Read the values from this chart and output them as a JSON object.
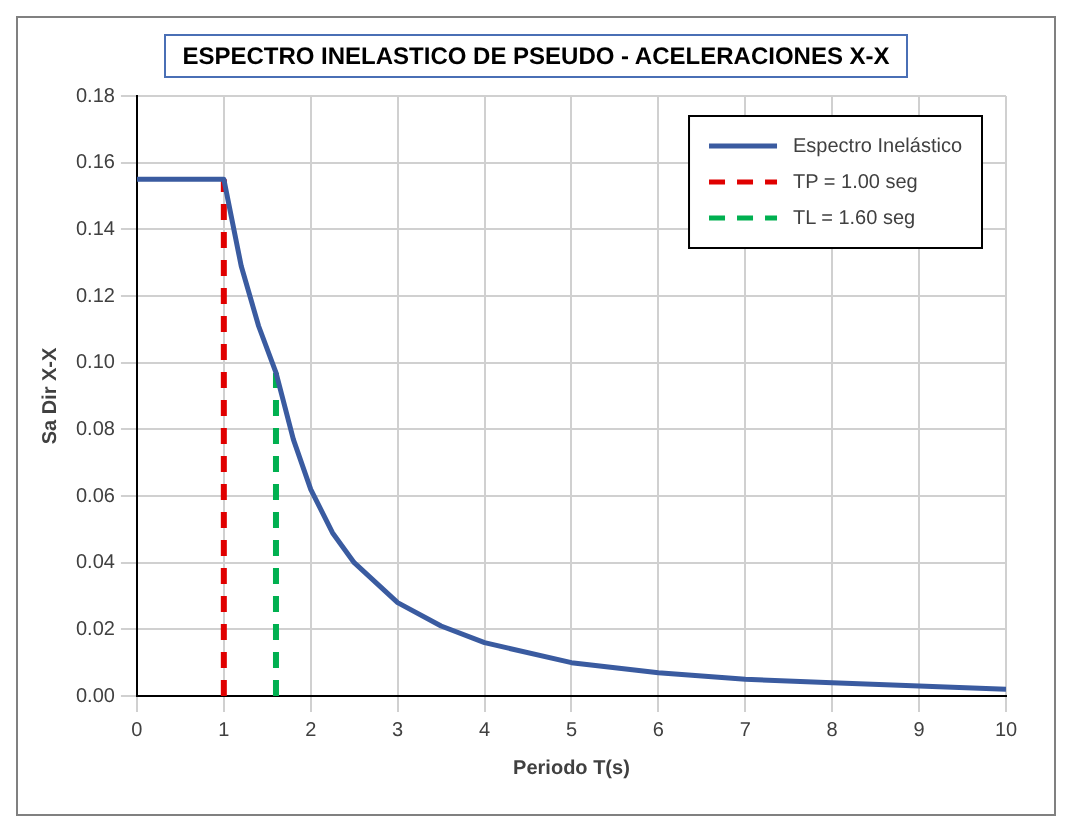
{
  "chart_data": {
    "type": "line",
    "title": "ESPECTRO INELASTICO DE PSEUDO - ACELERACIONES X-X",
    "xlabel": "Periodo T(s)",
    "ylabel": "Sa Dir X-X",
    "xlim": [
      0,
      10
    ],
    "xticks": [
      0,
      1,
      2,
      3,
      4,
      5,
      6,
      7,
      8,
      9,
      10
    ],
    "ylim": [
      0,
      0.18
    ],
    "yticks": [
      {
        "value": 0,
        "label": "0.00"
      },
      {
        "value": 0.02,
        "label": "0.02"
      },
      {
        "value": 0.04,
        "label": "0.04"
      },
      {
        "value": 0.06,
        "label": "0.06"
      },
      {
        "value": 0.08,
        "label": "0.08"
      },
      {
        "value": 0.1,
        "label": "0.10"
      },
      {
        "value": 0.12,
        "label": "0.12"
      },
      {
        "value": 0.14,
        "label": "0.14"
      },
      {
        "value": 0.16,
        "label": "0.16"
      },
      {
        "value": 0.18,
        "label": "0.18"
      }
    ],
    "grid": true,
    "legend": "top right",
    "marker": "none",
    "series": [
      {
        "name": "Espectro Inelástico",
        "color": "#3a5ba0",
        "line_style": "solid",
        "x": [
          0,
          1,
          1.2,
          1.4,
          1.6,
          1.8,
          2,
          2.25,
          2.5,
          3,
          3.5,
          4,
          5,
          6,
          7,
          8,
          9,
          10
        ],
        "values": [
          0.155,
          0.155,
          0.129,
          0.111,
          0.097,
          0.077,
          0.062,
          0.049,
          0.04,
          0.028,
          0.021,
          0.016,
          0.01,
          0.007,
          0.005,
          0.004,
          0.003,
          0.002
        ]
      },
      {
        "name": "TP = 1.00 seg",
        "color": "#e00000",
        "line_style": "dashed",
        "x": [
          1,
          1
        ],
        "values": [
          0,
          0.155
        ]
      },
      {
        "name": "TL = 1.60 seg",
        "color": "#00b050",
        "line_style": "dashed",
        "x": [
          1.6,
          1.6
        ],
        "values": [
          0,
          0.097
        ]
      }
    ]
  }
}
